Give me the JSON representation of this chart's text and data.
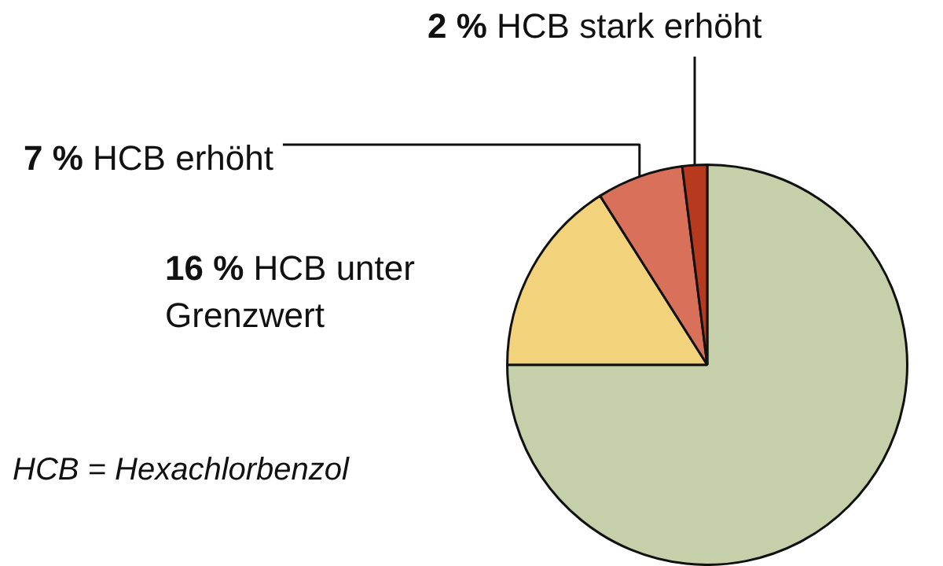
{
  "chart_data": {
    "type": "pie",
    "categories": [
      null,
      "HCB unter Grenzwert",
      "HCB erhöht",
      "HCB stark erhöht"
    ],
    "values": [
      75,
      16,
      7,
      2
    ],
    "value_labels": [
      null,
      "16 %",
      "7 %",
      "2 %"
    ],
    "colors": [
      "#c5cfa9",
      "#f2d27a",
      "#d9705a",
      "#b83a1e"
    ],
    "legend": false,
    "annotations": [
      "HCB = Hexachlorbenzol"
    ]
  }
}
